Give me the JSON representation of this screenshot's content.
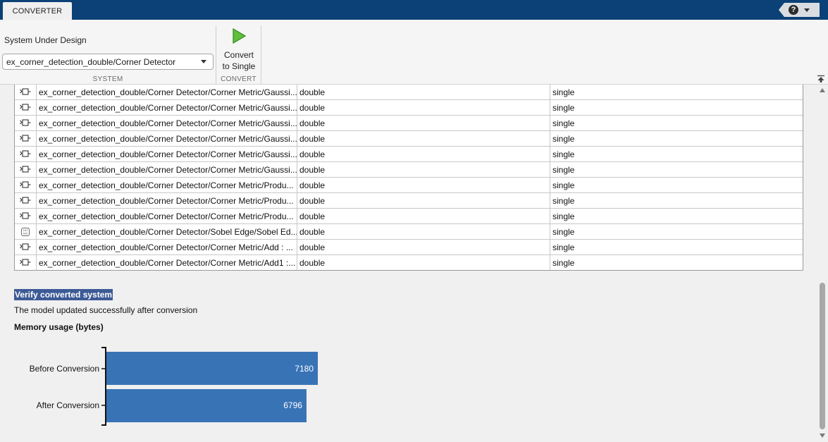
{
  "tabs": [
    {
      "label": "CONVERTER"
    }
  ],
  "help": {
    "icon": "help-icon",
    "symbol": "?"
  },
  "toolstrip": {
    "system": {
      "label": "System Under Design",
      "selected": "ex_corner_detection_double/Corner Detector",
      "section_title": "SYSTEM"
    },
    "convert": {
      "button_line1": "Convert",
      "button_line2": "to Single",
      "section_title": "CONVERT",
      "icon": "run-icon"
    }
  },
  "table": {
    "rows": [
      {
        "icon": "block-icon",
        "path": "ex_corner_detection_double/Corner Detector/Corner Metric/Gaussi...",
        "original": "double",
        "converted": "single"
      },
      {
        "icon": "block-icon",
        "path": "ex_corner_detection_double/Corner Detector/Corner Metric/Gaussi...",
        "original": "double",
        "converted": "single"
      },
      {
        "icon": "block-icon",
        "path": "ex_corner_detection_double/Corner Detector/Corner Metric/Gaussi...",
        "original": "double",
        "converted": "single"
      },
      {
        "icon": "block-icon",
        "path": "ex_corner_detection_double/Corner Detector/Corner Metric/Gaussi...",
        "original": "double",
        "converted": "single"
      },
      {
        "icon": "block-icon",
        "path": "ex_corner_detection_double/Corner Detector/Corner Metric/Gaussi...",
        "original": "double",
        "converted": "single"
      },
      {
        "icon": "block-icon",
        "path": "ex_corner_detection_double/Corner Detector/Corner Metric/Gaussi...",
        "original": "double",
        "converted": "single"
      },
      {
        "icon": "block-icon",
        "path": "ex_corner_detection_double/Corner Detector/Corner Metric/Produ...",
        "original": "double",
        "converted": "single"
      },
      {
        "icon": "block-icon",
        "path": "ex_corner_detection_double/Corner Detector/Corner Metric/Produ...",
        "original": "double",
        "converted": "single"
      },
      {
        "icon": "block-icon",
        "path": "ex_corner_detection_double/Corner Detector/Corner Metric/Produ...",
        "original": "double",
        "converted": "single"
      },
      {
        "icon": "signal-block-icon",
        "path": "ex_corner_detection_double/Corner Detector/Sobel Edge/Sobel Ed...",
        "original": "double",
        "converted": "single"
      },
      {
        "icon": "block-icon",
        "path": "ex_corner_detection_double/Corner Detector/Corner Metric/Add : ...",
        "original": "double",
        "converted": "single"
      },
      {
        "icon": "block-icon",
        "path": "ex_corner_detection_double/Corner Detector/Corner Metric/Add1 :...",
        "original": "double",
        "converted": "single"
      }
    ]
  },
  "report": {
    "verify_heading": "Verify converted system",
    "verify_message": "The model updated successfully after conversion",
    "memory_heading": "Memory usage (bytes)"
  },
  "chart_data": {
    "type": "bar",
    "orientation": "horizontal",
    "categories": [
      "Before Conversion",
      "After Conversion"
    ],
    "values": [
      7180,
      6796
    ],
    "bar_color": "#3873b6",
    "grid": false
  }
}
